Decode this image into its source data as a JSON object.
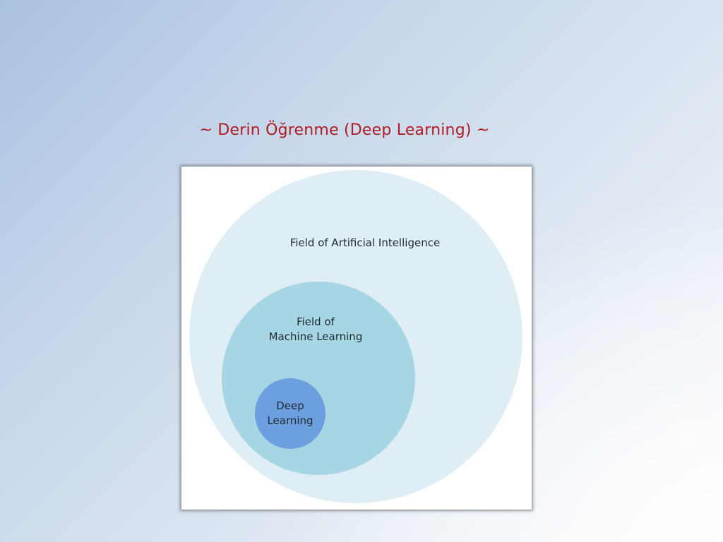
{
  "slide": {
    "title": "~ Derin Öğrenme (Deep Learning) ~"
  },
  "diagram": {
    "outer": {
      "label": "Field of Artificial Intelligence"
    },
    "middle": {
      "label_lines": [
        "Field of",
        "Machine Learning"
      ]
    },
    "inner": {
      "label_lines": [
        "Deep",
        "Learning"
      ]
    }
  },
  "colors": {
    "title": "#b01c20",
    "outer_circle": "#deeef4",
    "middle_circle": "#a6d5e3",
    "inner_circle": "#6c9fe0"
  }
}
